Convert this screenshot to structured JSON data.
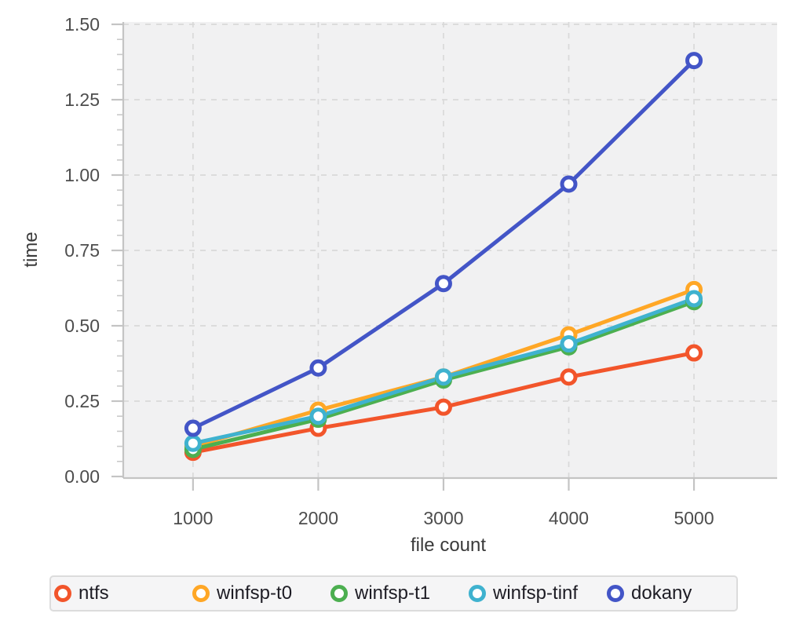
{
  "chart_data": {
    "type": "line",
    "title": "",
    "xlabel": "file count",
    "ylabel": "time",
    "x": [
      1000,
      2000,
      3000,
      4000,
      5000
    ],
    "series": [
      {
        "name": "ntfs",
        "color": "#F2552B",
        "values": [
          0.08,
          0.16,
          0.23,
          0.33,
          0.41
        ]
      },
      {
        "name": "winfsp-t0",
        "color": "#FFA726",
        "values": [
          0.1,
          0.22,
          0.33,
          0.47,
          0.62
        ]
      },
      {
        "name": "winfsp-t1",
        "color": "#4CAF50",
        "values": [
          0.09,
          0.19,
          0.32,
          0.43,
          0.58
        ]
      },
      {
        "name": "winfsp-tinf",
        "color": "#3FB2CF",
        "values": [
          0.11,
          0.2,
          0.33,
          0.44,
          0.59
        ]
      },
      {
        "name": "dokany",
        "color": "#4355C7",
        "values": [
          0.16,
          0.36,
          0.64,
          0.97,
          1.38
        ]
      }
    ],
    "x_ticks": [
      1000,
      2000,
      3000,
      4000,
      5000
    ],
    "x_tick_labels": [
      "1000",
      "2000",
      "3000",
      "4000",
      "5000"
    ],
    "y_ticks": [
      0,
      0.25,
      0.5,
      0.75,
      1.0,
      1.25,
      1.5
    ],
    "y_tick_labels": [
      "0.00",
      "0.25",
      "0.50",
      "0.75",
      "1.00",
      "1.25",
      "1.50"
    ],
    "y_minor_step": 0.05,
    "xlim": [
      443,
      5664
    ],
    "ylim": [
      0,
      1.5
    ],
    "grid": "dashed",
    "legend_position": "bottom",
    "marker": "open-circle"
  },
  "colors": {
    "plot_background": "#f1f1f2",
    "gridline": "#d9d9d9",
    "axis": "#c4c4c4",
    "tick_label": "#4d4d4d",
    "axis_title": "#3a3a3a",
    "legend_background": "#f5f5f6",
    "legend_border": "#dcdcdc",
    "legend_text": "#1d1c24"
  }
}
